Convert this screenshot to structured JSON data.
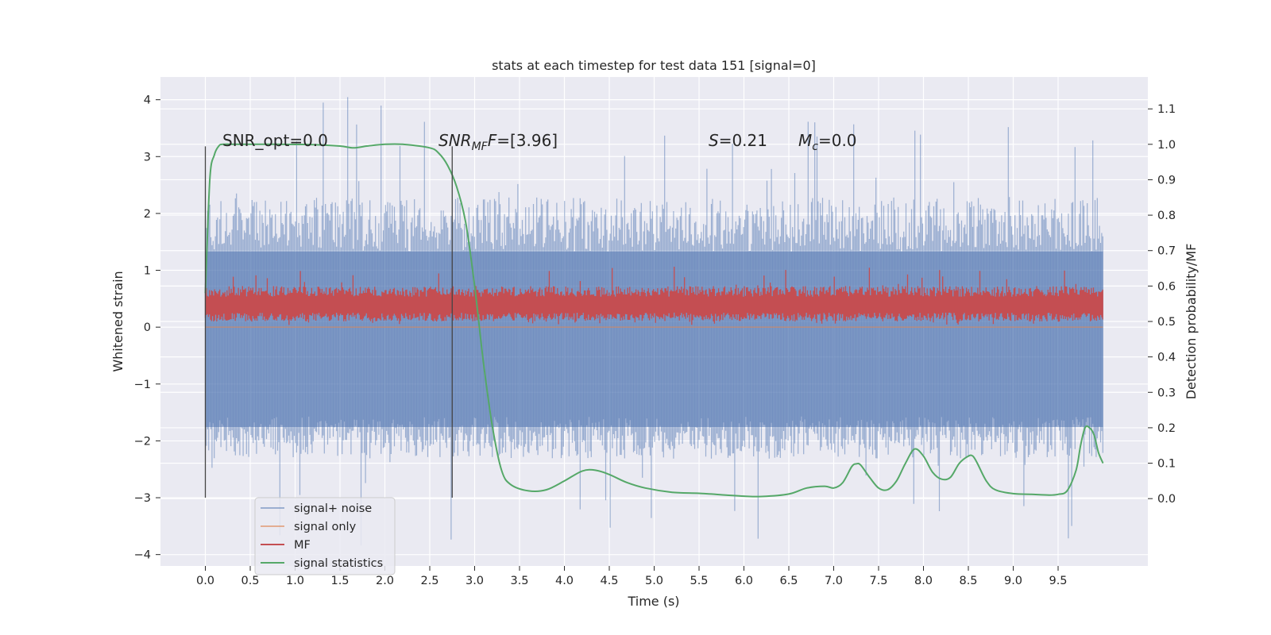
{
  "chart_data": {
    "type": "line",
    "title": "stats at each timestep for test data 151 [signal=0]",
    "xlabel": "Time (s)",
    "ylabel": "Whitened strain",
    "y2label": "Detection probability/MF",
    "xlim": [
      -0.5,
      10.5
    ],
    "ylim": [
      -4.2,
      4.4
    ],
    "y2lim": [
      -0.19,
      1.19
    ],
    "xticks": [
      "0.0",
      "0.5",
      "1.0",
      "1.5",
      "2.0",
      "2.5",
      "3.0",
      "3.5",
      "4.0",
      "4.5",
      "5.0",
      "5.5",
      "6.0",
      "6.5",
      "7.0",
      "7.5",
      "8.0",
      "8.5",
      "9.0",
      "9.5"
    ],
    "yticks": [
      "4",
      "3",
      "2",
      "1",
      "0",
      "−1",
      "−2",
      "−3",
      "−4"
    ],
    "y2ticks": [
      "1.1",
      "1.0",
      "0.9",
      "0.8",
      "0.7",
      "0.6",
      "0.5",
      "0.4",
      "0.3",
      "0.2",
      "0.1",
      "0.0"
    ],
    "grid": true,
    "legend_position": "lower-left",
    "annotations": {
      "snr_opt": "SNR_opt=0.0",
      "snr_mf_var": "SNR",
      "snr_mf_sub": "MF",
      "snr_mf_val": "=[3.96]",
      "s_var": "S",
      "s_val": "=0.21",
      "mc_var": "M",
      "mc_sub": "c",
      "mc_val": "=0.0"
    },
    "vlines": [
      {
        "x": 0.0,
        "ymin": -3.0,
        "ymax": 3.18
      },
      {
        "x": 2.75,
        "ymin": -3.0,
        "ymax": 3.18
      }
    ],
    "series": [
      {
        "name": "signal+ noise",
        "color": "#4C72B0",
        "axis": "left",
        "style": "dense noise, amplitude range",
        "x_range": [
          0.0,
          10.0
        ],
        "band": [
          -1.85,
          1.9
        ],
        "peaks_max": 4.05,
        "peaks_min": -3.85
      },
      {
        "name": "signal only",
        "color": "#DD8452",
        "axis": "left",
        "x": [
          0.0,
          10.0
        ],
        "y": [
          0.0,
          0.0
        ]
      },
      {
        "name": "MF",
        "color": "#C44E52",
        "axis": "right",
        "style": "dense noise, amplitude range",
        "x_range": [
          0.0,
          10.0
        ],
        "band": [
          0.51,
          0.58
        ],
        "peaks_max": 0.66,
        "peaks_min": 0.49
      },
      {
        "name": "signal statistics",
        "color": "#55A868",
        "axis": "right",
        "x": [
          0.0,
          0.05,
          0.1,
          0.15,
          0.2,
          0.4,
          0.8,
          1.2,
          1.5,
          1.65,
          1.8,
          2.0,
          2.2,
          2.5,
          2.6,
          2.7,
          2.8,
          2.9,
          3.0,
          3.1,
          3.2,
          3.3,
          3.4,
          3.6,
          3.8,
          4.0,
          4.2,
          4.35,
          4.5,
          4.7,
          4.9,
          5.2,
          5.5,
          5.8,
          6.0,
          6.2,
          6.5,
          6.7,
          6.9,
          7.0,
          7.1,
          7.2,
          7.25,
          7.3,
          7.4,
          7.5,
          7.6,
          7.7,
          7.8,
          7.9,
          8.0,
          8.1,
          8.2,
          8.3,
          8.4,
          8.5,
          8.55,
          8.6,
          8.7,
          8.8,
          9.0,
          9.2,
          9.4,
          9.5,
          9.6,
          9.7,
          9.75,
          9.8,
          9.85,
          9.9,
          9.95,
          10.0
        ],
        "y": [
          0.58,
          0.9,
          0.97,
          0.995,
          1.0,
          1.0,
          1.0,
          0.999,
          0.995,
          0.99,
          0.995,
          1.0,
          1.0,
          0.99,
          0.975,
          0.94,
          0.88,
          0.78,
          0.6,
          0.38,
          0.2,
          0.08,
          0.04,
          0.022,
          0.025,
          0.05,
          0.078,
          0.08,
          0.068,
          0.045,
          0.03,
          0.018,
          0.015,
          0.01,
          0.007,
          0.006,
          0.013,
          0.03,
          0.035,
          0.03,
          0.045,
          0.09,
          0.098,
          0.095,
          0.06,
          0.03,
          0.025,
          0.05,
          0.1,
          0.14,
          0.12,
          0.075,
          0.055,
          0.06,
          0.1,
          0.12,
          0.12,
          0.1,
          0.05,
          0.025,
          0.014,
          0.012,
          0.01,
          0.012,
          0.022,
          0.08,
          0.15,
          0.2,
          0.2,
          0.18,
          0.13,
          0.1
        ]
      }
    ]
  }
}
